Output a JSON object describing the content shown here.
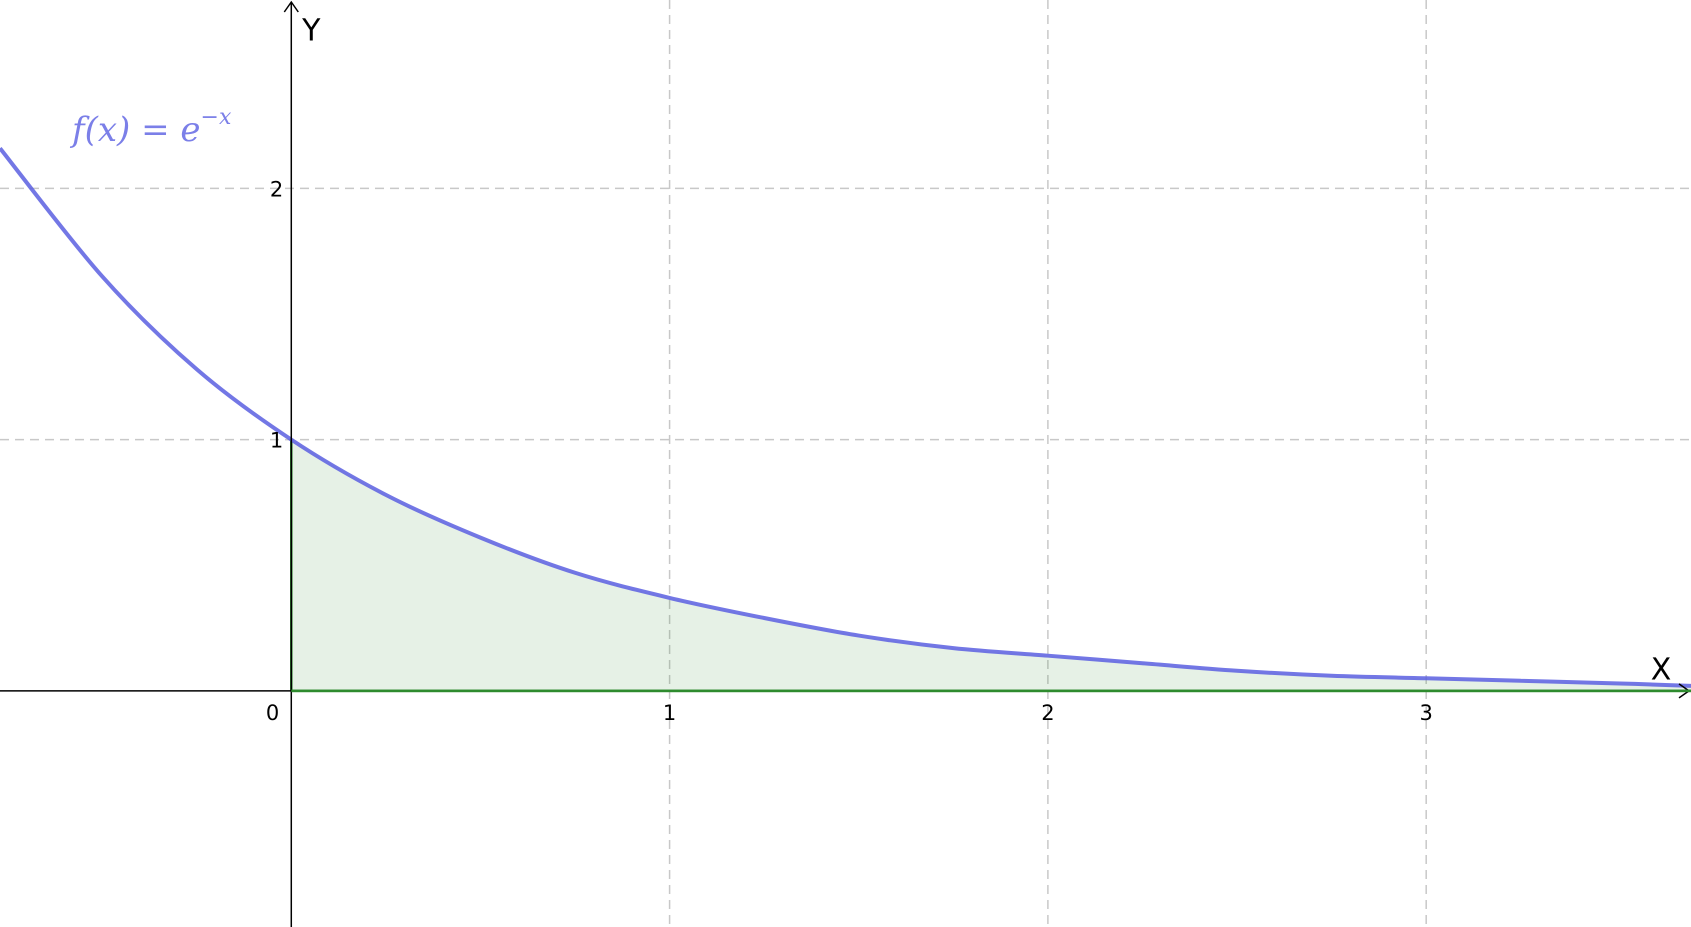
{
  "chart_data": {
    "type": "line",
    "annotation": {
      "base": "f(x) = e",
      "exponent": "−x"
    },
    "x_label": "X",
    "y_label": "Y",
    "origin_label": "0",
    "x": [
      -0.77,
      -0.5,
      -0.25,
      0,
      0.25,
      0.5,
      0.75,
      1,
      1.25,
      1.5,
      1.75,
      2,
      2.25,
      2.5,
      2.75,
      3,
      3.25,
      3.5,
      3.7
    ],
    "series": [
      {
        "type": "line",
        "color": "#5a5fe0",
        "values": [
          2.16,
          1.65,
          1.28,
          1,
          0.78,
          0.61,
          0.47,
          0.37,
          0.29,
          0.22,
          0.17,
          0.14,
          0.11,
          0.08,
          0.06,
          0.05,
          0.04,
          0.03,
          0.02
        ]
      },
      {
        "type": "area",
        "color": "#2e8b2e",
        "values": [
          null,
          null,
          null,
          1,
          0.78,
          0.61,
          0.47,
          0.37,
          0.29,
          0.22,
          0.17,
          0.14,
          0.11,
          0.08,
          0.06,
          0.05,
          0.04,
          0.03,
          0.02
        ]
      }
    ],
    "xlim": [
      -0.77,
      3.7
    ],
    "ylim": [
      -0.94,
      2.75
    ],
    "xticks": [
      1,
      2,
      3
    ],
    "yticks": [
      1,
      2
    ],
    "grid": true
  }
}
